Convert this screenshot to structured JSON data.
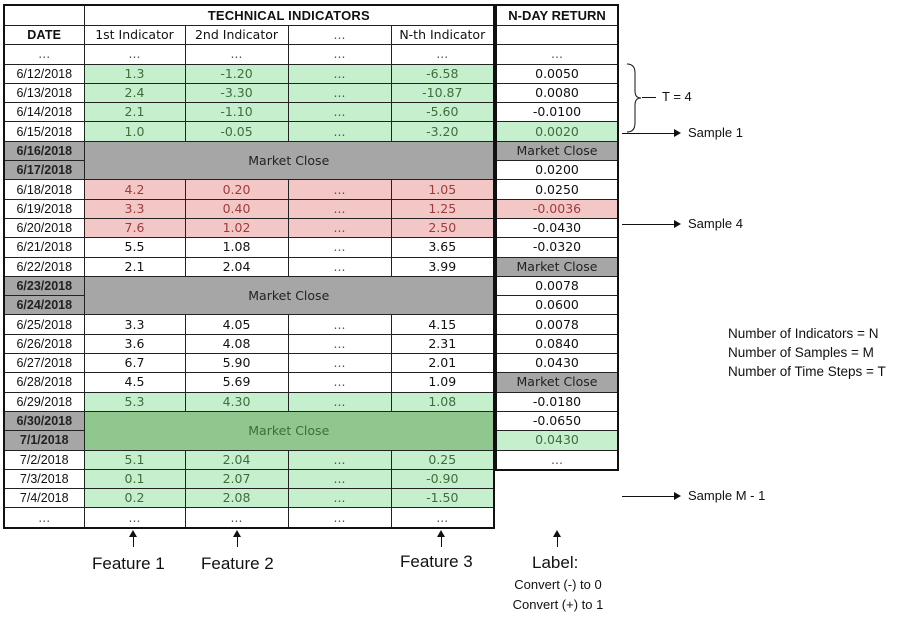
{
  "header": {
    "date": "DATE",
    "technical": "TECHNICAL INDICATORS",
    "return": "N-DAY RETURN",
    "ind1": "1st Indicator",
    "ind2": "2nd Indicator",
    "indDots": "...",
    "indN": "N-th Indicator"
  },
  "rows": [
    {
      "date": "...",
      "a": "...",
      "b": "...",
      "c": "...",
      "d": "...",
      "ret": "..."
    },
    {
      "date": "6/12/2018",
      "a": "1.3",
      "b": "-1.20",
      "c": "...",
      "d": "-6.58",
      "ret": "0.0050"
    },
    {
      "date": "6/13/2018",
      "a": "2.4",
      "b": "-3.30",
      "c": "...",
      "d": "-10.87",
      "ret": "0.0080"
    },
    {
      "date": "6/14/2018",
      "a": "2.1",
      "b": "-1.10",
      "c": "...",
      "d": "-5.60",
      "ret": "-0.0100"
    },
    {
      "date": "6/15/2018",
      "a": "1.0",
      "b": "-0.05",
      "c": "...",
      "d": "-3.20",
      "ret": "0.0020"
    },
    {
      "date": "6/16/2018"
    },
    {
      "date": "6/17/2018"
    },
    {
      "date": "6/18/2018",
      "a": "4.2",
      "b": "0.20",
      "c": "...",
      "d": "1.05",
      "ret": "0.0200"
    },
    {
      "date": "6/19/2018",
      "a": "3.3",
      "b": "0.40",
      "c": "...",
      "d": "1.25",
      "ret": "0.0250"
    },
    {
      "date": "6/20/2018",
      "a": "7.6",
      "b": "1.02",
      "c": "...",
      "d": "2.50",
      "ret": "-0.0036"
    },
    {
      "date": "6/21/2018",
      "a": "5.5",
      "b": "1.08",
      "c": "...",
      "d": "3.65",
      "ret": "-0.0430"
    },
    {
      "date": "6/22/2018",
      "a": "2.1",
      "b": "2.04",
      "c": "...",
      "d": "3.99",
      "ret": "-0.0320"
    },
    {
      "date": "6/23/2018"
    },
    {
      "date": "6/24/2018"
    },
    {
      "date": "6/25/2018",
      "a": "3.3",
      "b": "4.05",
      "c": "...",
      "d": "4.15",
      "ret": "0.0078"
    },
    {
      "date": "6/26/2018",
      "a": "3.6",
      "b": "4.08",
      "c": "...",
      "d": "2.31",
      "ret": "0.0600"
    },
    {
      "date": "6/27/2018",
      "a": "6.7",
      "b": "5.90",
      "c": "...",
      "d": "2.01",
      "ret": "0.0078"
    },
    {
      "date": "6/28/2018",
      "a": "4.5",
      "b": "5.69",
      "c": "...",
      "d": "1.09",
      "ret": "0.0840"
    },
    {
      "date": "6/29/2018",
      "a": "5.3",
      "b": "4.30",
      "c": "...",
      "d": "1.08",
      "ret": "0.0430"
    },
    {
      "date": "6/30/2018"
    },
    {
      "date": "7/1/2018"
    },
    {
      "date": "7/2/2018",
      "a": "5.1",
      "b": "2.04",
      "c": "...",
      "d": "0.25",
      "ret": "-0.0180"
    },
    {
      "date": "7/3/2018",
      "a": "0.1",
      "b": "2.07",
      "c": "...",
      "d": "-0.90",
      "ret": "-0.0650"
    },
    {
      "date": "7/4/2018",
      "a": "0.2",
      "b": "2.08",
      "c": "...",
      "d": "-1.50",
      "ret": "0.0430"
    },
    {
      "date": "...",
      "a": "...",
      "b": "...",
      "c": "...",
      "d": "...",
      "ret": "..."
    }
  ],
  "market_close": "Market Close",
  "annotations": {
    "t": "T = 4",
    "sample1": "Sample 1",
    "sample4": "Sample 4",
    "sampleM": "Sample M - 1"
  },
  "info": {
    "line1": "Number of Indicators = N",
    "line2": "Number of Samples = M",
    "line3": "Number of Time Steps = T"
  },
  "features": {
    "f1": "Feature 1",
    "f2": "Feature 2",
    "f3": "Feature 3",
    "label": "Label:",
    "conv1": "Convert (-) to 0",
    "conv2": "Convert (+) to 1"
  },
  "colors": {
    "green": "#c6efce",
    "red": "#f4c7c7",
    "gray": "#a6a6a6",
    "dark_green": "#8fc78f"
  }
}
